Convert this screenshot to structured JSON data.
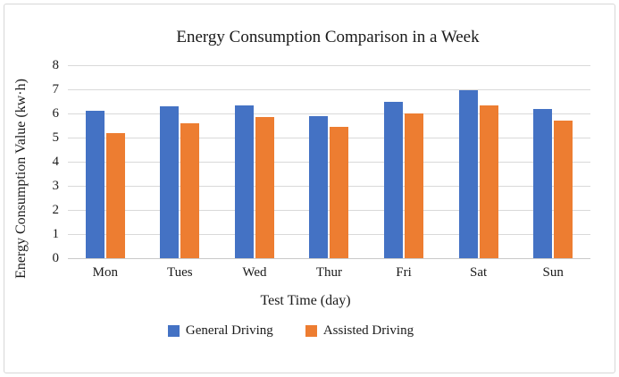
{
  "chart_data": {
    "type": "bar",
    "title": "Energy Consumption Comparison in a Week",
    "xlabel": "Test Time (day)",
    "ylabel": "Energy Consumption Value (kw·h)",
    "categories": [
      "Mon",
      "Tues",
      "Wed",
      "Thur",
      "Fri",
      "Sat",
      "Sun"
    ],
    "series": [
      {
        "name": "General Driving",
        "color": "#4472C4",
        "values": [
          6.1,
          6.3,
          6.35,
          5.9,
          6.5,
          6.95,
          6.2
        ]
      },
      {
        "name": "Assisted Driving",
        "color": "#ED7D31",
        "values": [
          5.2,
          5.6,
          5.85,
          5.45,
          6.0,
          6.35,
          5.7
        ]
      }
    ],
    "ylim": [
      0,
      8
    ],
    "yticks": [
      0,
      1,
      2,
      3,
      4,
      5,
      6,
      7,
      8
    ],
    "grid": "horizontal",
    "legend_position": "bottom"
  },
  "style": {
    "background": "#FFFFFF",
    "frame_border_color": "#D7D7D7",
    "gridline_color": "#D9D9D9",
    "axis_line_color": "#C9C9C9",
    "text_color": "#1A1A1A",
    "bar_blue": "#4472C4",
    "bar_orange": "#ED7D31"
  }
}
